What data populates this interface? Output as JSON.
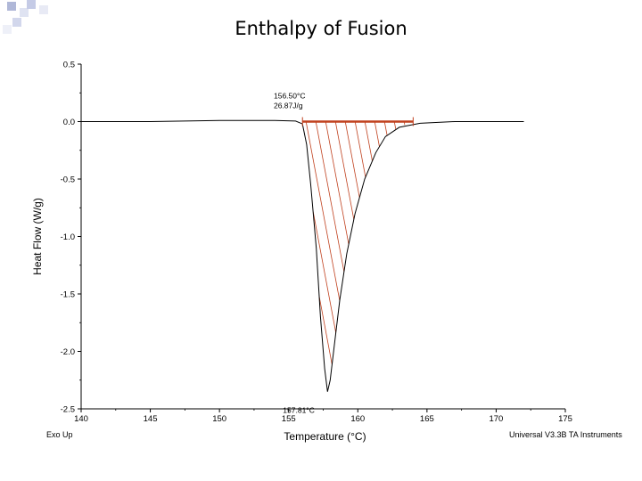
{
  "slide": {
    "title": "Enthalpy of Fusion"
  },
  "footer": {
    "left": "Exo Up",
    "right": "Universal V3.3B TA Instruments"
  },
  "chart_data": {
    "type": "line",
    "title": "Enthalpy of Fusion",
    "xlabel": "Temperature (°C)",
    "ylabel": "Heat Flow (W/g)",
    "xlim": [
      140,
      175
    ],
    "ylim": [
      -2.5,
      0.5
    ],
    "xticks": [
      "140",
      "145",
      "150",
      "155",
      "160",
      "165",
      "170",
      "175"
    ],
    "yticks": [
      "0.5",
      "0.0",
      "-0.5",
      "-1.0",
      "-1.5",
      "-2.0",
      "-2.5"
    ],
    "grid": false,
    "series": [
      {
        "x": [
          140,
          145,
          150,
          154,
          155.5,
          156.0,
          156.3,
          156.6,
          157.0,
          157.3,
          157.6,
          157.81,
          158.0,
          158.3,
          158.7,
          159.2,
          159.8,
          160.5,
          161.3,
          162.0,
          163.0,
          164.5,
          167,
          170,
          172
        ],
        "y": [
          0.0,
          0.0,
          0.01,
          0.01,
          0.005,
          -0.02,
          -0.2,
          -0.55,
          -1.1,
          -1.7,
          -2.15,
          -2.35,
          -2.25,
          -1.95,
          -1.55,
          -1.15,
          -0.8,
          -0.5,
          -0.27,
          -0.13,
          -0.05,
          -0.015,
          0.0,
          0.0,
          0.0
        ],
        "color": "#000000"
      }
    ],
    "baseline": {
      "x_start": 156.0,
      "x_end": 164.0,
      "y": 0.0,
      "color": "#c0401e"
    },
    "annotations": [
      {
        "lines": [
          "156.50°C",
          "26.87J/g"
        ],
        "x": 156.5,
        "y": 0.0
      },
      {
        "lines": [
          "157.81°C"
        ],
        "x": 157.81,
        "y": -2.35
      }
    ],
    "shading": {
      "color": "#c0401e",
      "pattern": "hatched"
    }
  }
}
